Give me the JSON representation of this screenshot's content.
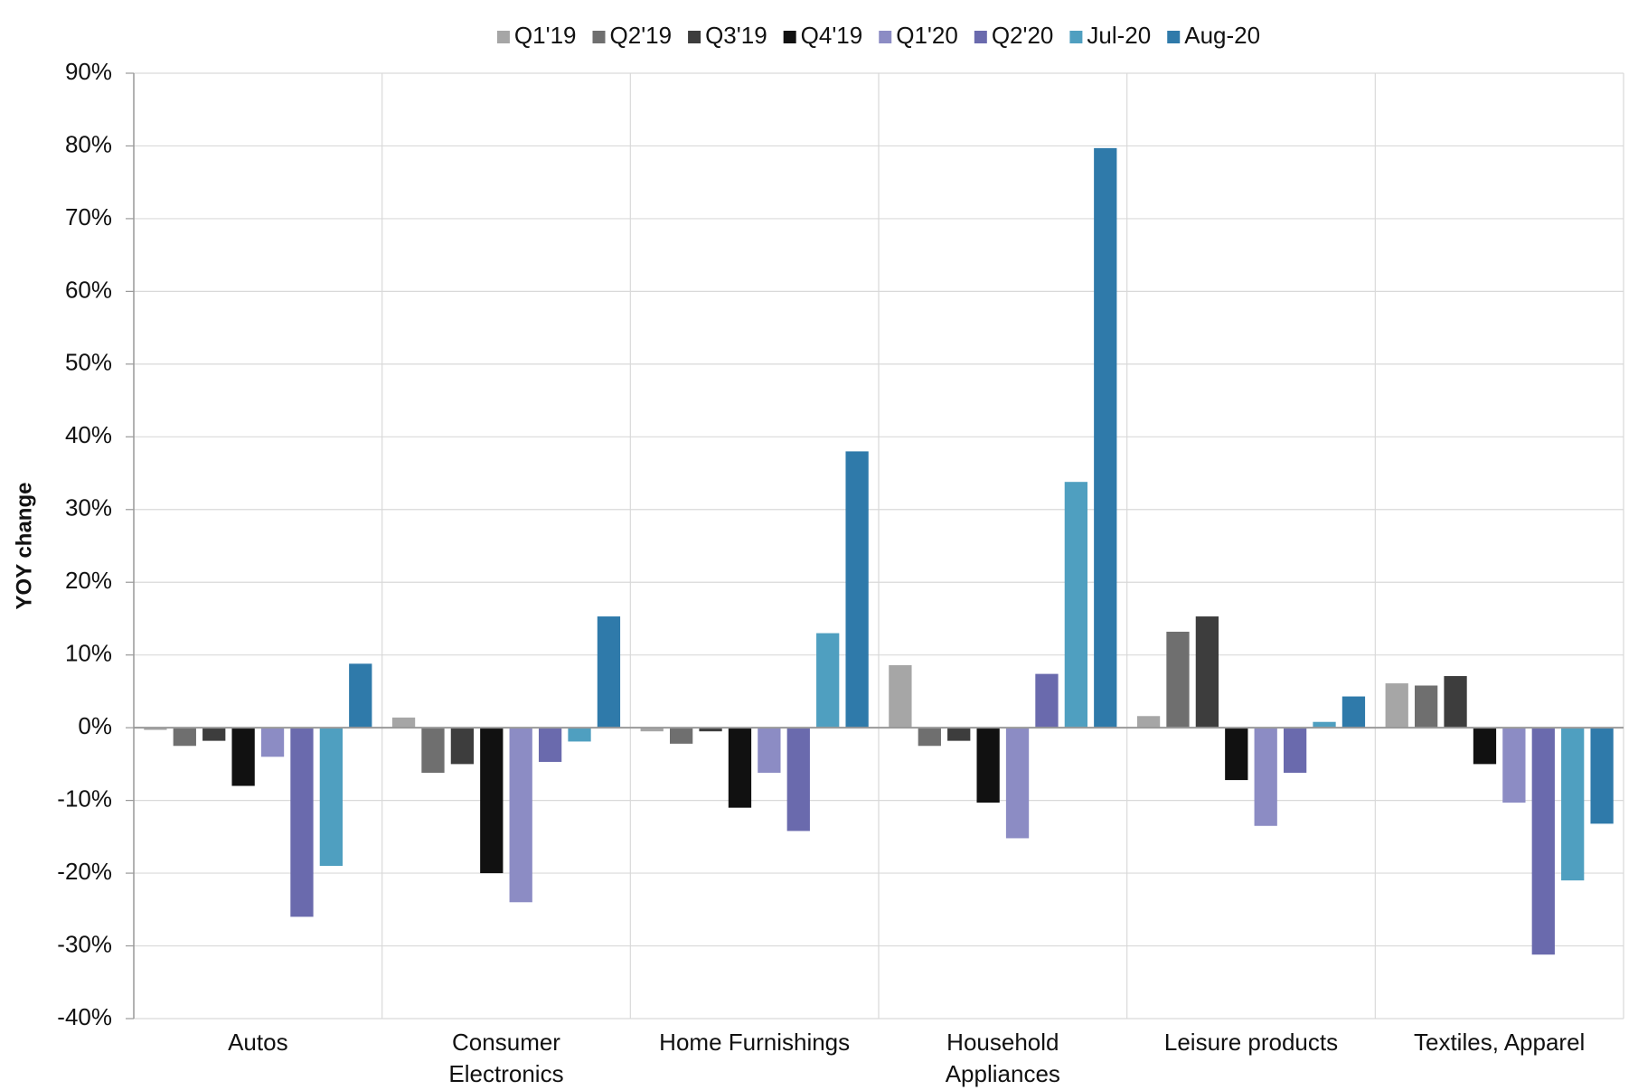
{
  "chart_data": {
    "type": "bar",
    "y_label": "YOY change",
    "categories": [
      "Autos",
      "Consumer\nElectronics",
      "Home Furnishings",
      "Household\nAppliances",
      "Leisure products",
      "Textiles, Apparel"
    ],
    "series": [
      {
        "name": "Q1'19",
        "color": "#a6a6a6",
        "values": [
          -0.3,
          1.4,
          -0.5,
          8.6,
          1.6,
          6.1
        ]
      },
      {
        "name": "Q2'19",
        "color": "#6f6f6f",
        "values": [
          -2.5,
          -6.2,
          -2.2,
          -2.5,
          13.2,
          5.8
        ]
      },
      {
        "name": "Q3'19",
        "color": "#3d3d3d",
        "values": [
          -1.8,
          -5,
          -0.5,
          -1.8,
          15.3,
          7.1
        ]
      },
      {
        "name": "Q4'19",
        "color": "#111111",
        "values": [
          -8,
          -20,
          -11,
          -10.3,
          -7.2,
          -5
        ]
      },
      {
        "name": "Q1'20",
        "color": "#8c8cc4",
        "values": [
          -4,
          -24,
          -6.2,
          -15.2,
          -13.5,
          -10.3
        ]
      },
      {
        "name": "Q2'20",
        "color": "#6a6aad",
        "values": [
          -26,
          -4.7,
          -14.2,
          7.4,
          -6.2,
          -31.2
        ]
      },
      {
        "name": "Jul-20",
        "color": "#4f9fc0",
        "values": [
          -19,
          -1.9,
          13,
          33.8,
          0.8,
          -21
        ]
      },
      {
        "name": "Aug-20",
        "color": "#2f7aaa",
        "values": [
          8.8,
          15.3,
          38,
          79.7,
          4.3,
          -13.2
        ]
      }
    ],
    "ylim": [
      -40,
      90
    ],
    "yticks": [
      {
        "value": -40,
        "label": "-40%"
      },
      {
        "value": -30,
        "label": "-30%"
      },
      {
        "value": -20,
        "label": "-20%"
      },
      {
        "value": -10,
        "label": "-10%"
      },
      {
        "value": 0,
        "label": "0%"
      },
      {
        "value": 10,
        "label": "10%"
      },
      {
        "value": 20,
        "label": "20%"
      },
      {
        "value": 30,
        "label": "30%"
      },
      {
        "value": 40,
        "label": "40%"
      },
      {
        "value": 50,
        "label": "50%"
      },
      {
        "value": 60,
        "label": "60%"
      },
      {
        "value": 70,
        "label": "70%"
      },
      {
        "value": 80,
        "label": "80%"
      },
      {
        "value": 90,
        "label": "90%"
      }
    ],
    "grid": true,
    "legend": "top"
  }
}
